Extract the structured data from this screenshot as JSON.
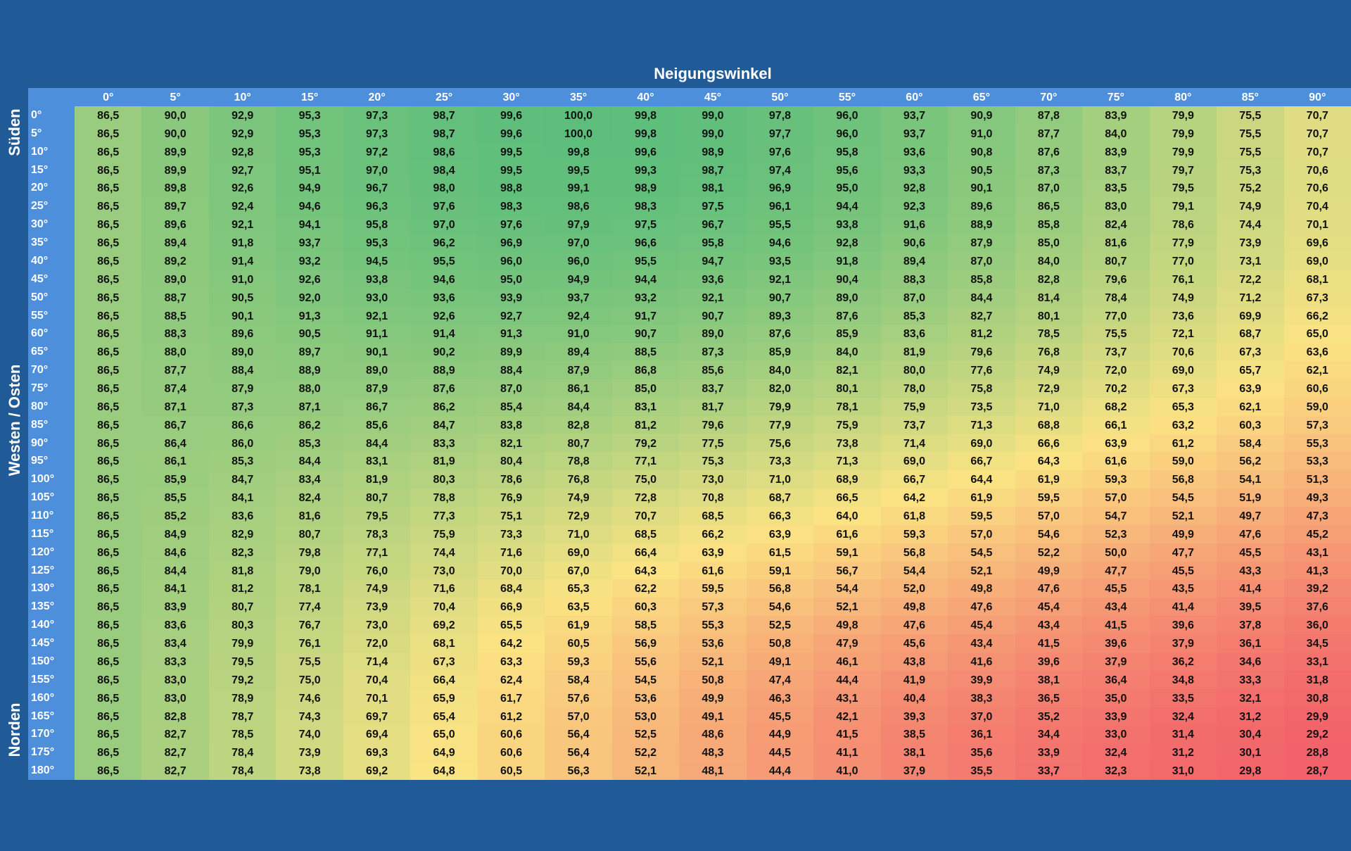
{
  "title": "Neigungswinkel",
  "direction_labels": [
    "Süden",
    "Westen / Osten",
    "Norden"
  ],
  "colors": {
    "background": "#205b98",
    "header": "#4e8fdc",
    "low": "#f2626a",
    "mid": "#fbe383",
    "high": "#5dbe7b"
  },
  "chart_data": {
    "type": "heatmap",
    "title": "Neigungswinkel",
    "x_labels": [
      "0°",
      "5°",
      "10°",
      "15°",
      "20°",
      "25°",
      "30°",
      "35°",
      "40°",
      "45°",
      "50°",
      "55°",
      "60°",
      "65°",
      "70°",
      "75°",
      "80°",
      "85°",
      "90°"
    ],
    "y_labels": [
      "0°",
      "5°",
      "10°",
      "15°",
      "20°",
      "25°",
      "30°",
      "35°",
      "40°",
      "45°",
      "50°",
      "55°",
      "60°",
      "65°",
      "70°",
      "75°",
      "80°",
      "85°",
      "90°",
      "95°",
      "100°",
      "105°",
      "110°",
      "115°",
      "120°",
      "125°",
      "130°",
      "135°",
      "140°",
      "145°",
      "150°",
      "155°",
      "160°",
      "165°",
      "170°",
      "175°",
      "180°"
    ],
    "value_range": [
      28.7,
      100.0
    ],
    "colorscale": [
      "#f2626a",
      "#fbe383",
      "#5dbe7b"
    ],
    "values": [
      [
        "86,5",
        "90,0",
        "92,9",
        "95,3",
        "97,3",
        "98,7",
        "99,6",
        "100,0",
        "99,8",
        "99,0",
        "97,8",
        "96,0",
        "93,7",
        "90,9",
        "87,8",
        "83,9",
        "79,9",
        "75,5",
        "70,7"
      ],
      [
        "86,5",
        "90,0",
        "92,9",
        "95,3",
        "97,3",
        "98,7",
        "99,6",
        "100,0",
        "99,8",
        "99,0",
        "97,7",
        "96,0",
        "93,7",
        "91,0",
        "87,7",
        "84,0",
        "79,9",
        "75,5",
        "70,7"
      ],
      [
        "86,5",
        "89,9",
        "92,8",
        "95,3",
        "97,2",
        "98,6",
        "99,5",
        "99,8",
        "99,6",
        "98,9",
        "97,6",
        "95,8",
        "93,6",
        "90,8",
        "87,6",
        "83,9",
        "79,9",
        "75,5",
        "70,7"
      ],
      [
        "86,5",
        "89,9",
        "92,7",
        "95,1",
        "97,0",
        "98,4",
        "99,5",
        "99,5",
        "99,3",
        "98,7",
        "97,4",
        "95,6",
        "93,3",
        "90,5",
        "87,3",
        "83,7",
        "79,7",
        "75,3",
        "70,6"
      ],
      [
        "86,5",
        "89,8",
        "92,6",
        "94,9",
        "96,7",
        "98,0",
        "98,8",
        "99,1",
        "98,9",
        "98,1",
        "96,9",
        "95,0",
        "92,8",
        "90,1",
        "87,0",
        "83,5",
        "79,5",
        "75,2",
        "70,6"
      ],
      [
        "86,5",
        "89,7",
        "92,4",
        "94,6",
        "96,3",
        "97,6",
        "98,3",
        "98,6",
        "98,3",
        "97,5",
        "96,1",
        "94,4",
        "92,3",
        "89,6",
        "86,5",
        "83,0",
        "79,1",
        "74,9",
        "70,4"
      ],
      [
        "86,5",
        "89,6",
        "92,1",
        "94,1",
        "95,8",
        "97,0",
        "97,6",
        "97,9",
        "97,5",
        "96,7",
        "95,5",
        "93,8",
        "91,6",
        "88,9",
        "85,8",
        "82,4",
        "78,6",
        "74,4",
        "70,1"
      ],
      [
        "86,5",
        "89,4",
        "91,8",
        "93,7",
        "95,3",
        "96,2",
        "96,9",
        "97,0",
        "96,6",
        "95,8",
        "94,6",
        "92,8",
        "90,6",
        "87,9",
        "85,0",
        "81,6",
        "77,9",
        "73,9",
        "69,6"
      ],
      [
        "86,5",
        "89,2",
        "91,4",
        "93,2",
        "94,5",
        "95,5",
        "96,0",
        "96,0",
        "95,5",
        "94,7",
        "93,5",
        "91,8",
        "89,4",
        "87,0",
        "84,0",
        "80,7",
        "77,0",
        "73,1",
        "69,0"
      ],
      [
        "86,5",
        "89,0",
        "91,0",
        "92,6",
        "93,8",
        "94,6",
        "95,0",
        "94,9",
        "94,4",
        "93,6",
        "92,1",
        "90,4",
        "88,3",
        "85,8",
        "82,8",
        "79,6",
        "76,1",
        "72,2",
        "68,1"
      ],
      [
        "86,5",
        "88,7",
        "90,5",
        "92,0",
        "93,0",
        "93,6",
        "93,9",
        "93,7",
        "93,2",
        "92,1",
        "90,7",
        "89,0",
        "87,0",
        "84,4",
        "81,4",
        "78,4",
        "74,9",
        "71,2",
        "67,3"
      ],
      [
        "86,5",
        "88,5",
        "90,1",
        "91,3",
        "92,1",
        "92,6",
        "92,7",
        "92,4",
        "91,7",
        "90,7",
        "89,3",
        "87,6",
        "85,3",
        "82,7",
        "80,1",
        "77,0",
        "73,6",
        "69,9",
        "66,2"
      ],
      [
        "86,5",
        "88,3",
        "89,6",
        "90,5",
        "91,1",
        "91,4",
        "91,3",
        "91,0",
        "90,7",
        "89,0",
        "87,6",
        "85,9",
        "83,6",
        "81,2",
        "78,5",
        "75,5",
        "72,1",
        "68,7",
        "65,0"
      ],
      [
        "86,5",
        "88,0",
        "89,0",
        "89,7",
        "90,1",
        "90,2",
        "89,9",
        "89,4",
        "88,5",
        "87,3",
        "85,9",
        "84,0",
        "81,9",
        "79,6",
        "76,8",
        "73,7",
        "70,6",
        "67,3",
        "63,6"
      ],
      [
        "86,5",
        "87,7",
        "88,4",
        "88,9",
        "89,0",
        "88,9",
        "88,4",
        "87,9",
        "86,8",
        "85,6",
        "84,0",
        "82,1",
        "80,0",
        "77,6",
        "74,9",
        "72,0",
        "69,0",
        "65,7",
        "62,1"
      ],
      [
        "86,5",
        "87,4",
        "87,9",
        "88,0",
        "87,9",
        "87,6",
        "87,0",
        "86,1",
        "85,0",
        "83,7",
        "82,0",
        "80,1",
        "78,0",
        "75,8",
        "72,9",
        "70,2",
        "67,3",
        "63,9",
        "60,6"
      ],
      [
        "86,5",
        "87,1",
        "87,3",
        "87,1",
        "86,7",
        "86,2",
        "85,4",
        "84,4",
        "83,1",
        "81,7",
        "79,9",
        "78,1",
        "75,9",
        "73,5",
        "71,0",
        "68,2",
        "65,3",
        "62,1",
        "59,0"
      ],
      [
        "86,5",
        "86,7",
        "86,6",
        "86,2",
        "85,6",
        "84,7",
        "83,8",
        "82,8",
        "81,2",
        "79,6",
        "77,9",
        "75,9",
        "73,7",
        "71,3",
        "68,8",
        "66,1",
        "63,2",
        "60,3",
        "57,3"
      ],
      [
        "86,5",
        "86,4",
        "86,0",
        "85,3",
        "84,4",
        "83,3",
        "82,1",
        "80,7",
        "79,2",
        "77,5",
        "75,6",
        "73,8",
        "71,4",
        "69,0",
        "66,6",
        "63,9",
        "61,2",
        "58,4",
        "55,3"
      ],
      [
        "86,5",
        "86,1",
        "85,3",
        "84,4",
        "83,1",
        "81,9",
        "80,4",
        "78,8",
        "77,1",
        "75,3",
        "73,3",
        "71,3",
        "69,0",
        "66,7",
        "64,3",
        "61,6",
        "59,0",
        "56,2",
        "53,3"
      ],
      [
        "86,5",
        "85,9",
        "84,7",
        "83,4",
        "81,9",
        "80,3",
        "78,6",
        "76,8",
        "75,0",
        "73,0",
        "71,0",
        "68,9",
        "66,7",
        "64,4",
        "61,9",
        "59,3",
        "56,8",
        "54,1",
        "51,3"
      ],
      [
        "86,5",
        "85,5",
        "84,1",
        "82,4",
        "80,7",
        "78,8",
        "76,9",
        "74,9",
        "72,8",
        "70,8",
        "68,7",
        "66,5",
        "64,2",
        "61,9",
        "59,5",
        "57,0",
        "54,5",
        "51,9",
        "49,3"
      ],
      [
        "86,5",
        "85,2",
        "83,6",
        "81,6",
        "79,5",
        "77,3",
        "75,1",
        "72,9",
        "70,7",
        "68,5",
        "66,3",
        "64,0",
        "61,8",
        "59,5",
        "57,0",
        "54,7",
        "52,1",
        "49,7",
        "47,3"
      ],
      [
        "86,5",
        "84,9",
        "82,9",
        "80,7",
        "78,3",
        "75,9",
        "73,3",
        "71,0",
        "68,5",
        "66,2",
        "63,9",
        "61,6",
        "59,3",
        "57,0",
        "54,6",
        "52,3",
        "49,9",
        "47,6",
        "45,2"
      ],
      [
        "86,5",
        "84,6",
        "82,3",
        "79,8",
        "77,1",
        "74,4",
        "71,6",
        "69,0",
        "66,4",
        "63,9",
        "61,5",
        "59,1",
        "56,8",
        "54,5",
        "52,2",
        "50,0",
        "47,7",
        "45,5",
        "43,1"
      ],
      [
        "86,5",
        "84,4",
        "81,8",
        "79,0",
        "76,0",
        "73,0",
        "70,0",
        "67,0",
        "64,3",
        "61,6",
        "59,1",
        "56,7",
        "54,4",
        "52,1",
        "49,9",
        "47,7",
        "45,5",
        "43,3",
        "41,3"
      ],
      [
        "86,5",
        "84,1",
        "81,2",
        "78,1",
        "74,9",
        "71,6",
        "68,4",
        "65,3",
        "62,2",
        "59,5",
        "56,8",
        "54,4",
        "52,0",
        "49,8",
        "47,6",
        "45,5",
        "43,5",
        "41,4",
        "39,2"
      ],
      [
        "86,5",
        "83,9",
        "80,7",
        "77,4",
        "73,9",
        "70,4",
        "66,9",
        "63,5",
        "60,3",
        "57,3",
        "54,6",
        "52,1",
        "49,8",
        "47,6",
        "45,4",
        "43,4",
        "41,4",
        "39,5",
        "37,6"
      ],
      [
        "86,5",
        "83,6",
        "80,3",
        "76,7",
        "73,0",
        "69,2",
        "65,5",
        "61,9",
        "58,5",
        "55,3",
        "52,5",
        "49,8",
        "47,6",
        "45,4",
        "43,4",
        "41,5",
        "39,6",
        "37,8",
        "36,0"
      ],
      [
        "86,5",
        "83,4",
        "79,9",
        "76,1",
        "72,0",
        "68,1",
        "64,2",
        "60,5",
        "56,9",
        "53,6",
        "50,8",
        "47,9",
        "45,6",
        "43,4",
        "41,5",
        "39,6",
        "37,9",
        "36,1",
        "34,5"
      ],
      [
        "86,5",
        "83,3",
        "79,5",
        "75,5",
        "71,4",
        "67,3",
        "63,3",
        "59,3",
        "55,6",
        "52,1",
        "49,1",
        "46,1",
        "43,8",
        "41,6",
        "39,6",
        "37,9",
        "36,2",
        "34,6",
        "33,1"
      ],
      [
        "86,5",
        "83,0",
        "79,2",
        "75,0",
        "70,4",
        "66,4",
        "62,4",
        "58,4",
        "54,5",
        "50,8",
        "47,4",
        "44,4",
        "41,9",
        "39,9",
        "38,1",
        "36,4",
        "34,8",
        "33,3",
        "31,8"
      ],
      [
        "86,5",
        "83,0",
        "78,9",
        "74,6",
        "70,1",
        "65,9",
        "61,7",
        "57,6",
        "53,6",
        "49,9",
        "46,3",
        "43,1",
        "40,4",
        "38,3",
        "36,5",
        "35,0",
        "33,5",
        "32,1",
        "30,8"
      ],
      [
        "86,5",
        "82,8",
        "78,7",
        "74,3",
        "69,7",
        "65,4",
        "61,2",
        "57,0",
        "53,0",
        "49,1",
        "45,5",
        "42,1",
        "39,3",
        "37,0",
        "35,2",
        "33,9",
        "32,4",
        "31,2",
        "29,9"
      ],
      [
        "86,5",
        "82,7",
        "78,5",
        "74,0",
        "69,4",
        "65,0",
        "60,6",
        "56,4",
        "52,5",
        "48,6",
        "44,9",
        "41,5",
        "38,5",
        "36,1",
        "34,4",
        "33,0",
        "31,4",
        "30,4",
        "29,2"
      ],
      [
        "86,5",
        "82,7",
        "78,4",
        "73,9",
        "69,3",
        "64,9",
        "60,6",
        "56,4",
        "52,2",
        "48,3",
        "44,5",
        "41,1",
        "38,1",
        "35,6",
        "33,9",
        "32,4",
        "31,2",
        "30,1",
        "28,8"
      ],
      [
        "86,5",
        "82,7",
        "78,4",
        "73,8",
        "69,2",
        "64,8",
        "60,5",
        "56,3",
        "52,1",
        "48,1",
        "44,4",
        "41,0",
        "37,9",
        "35,5",
        "33,7",
        "32,3",
        "31,0",
        "29,8",
        "28,7"
      ]
    ]
  }
}
